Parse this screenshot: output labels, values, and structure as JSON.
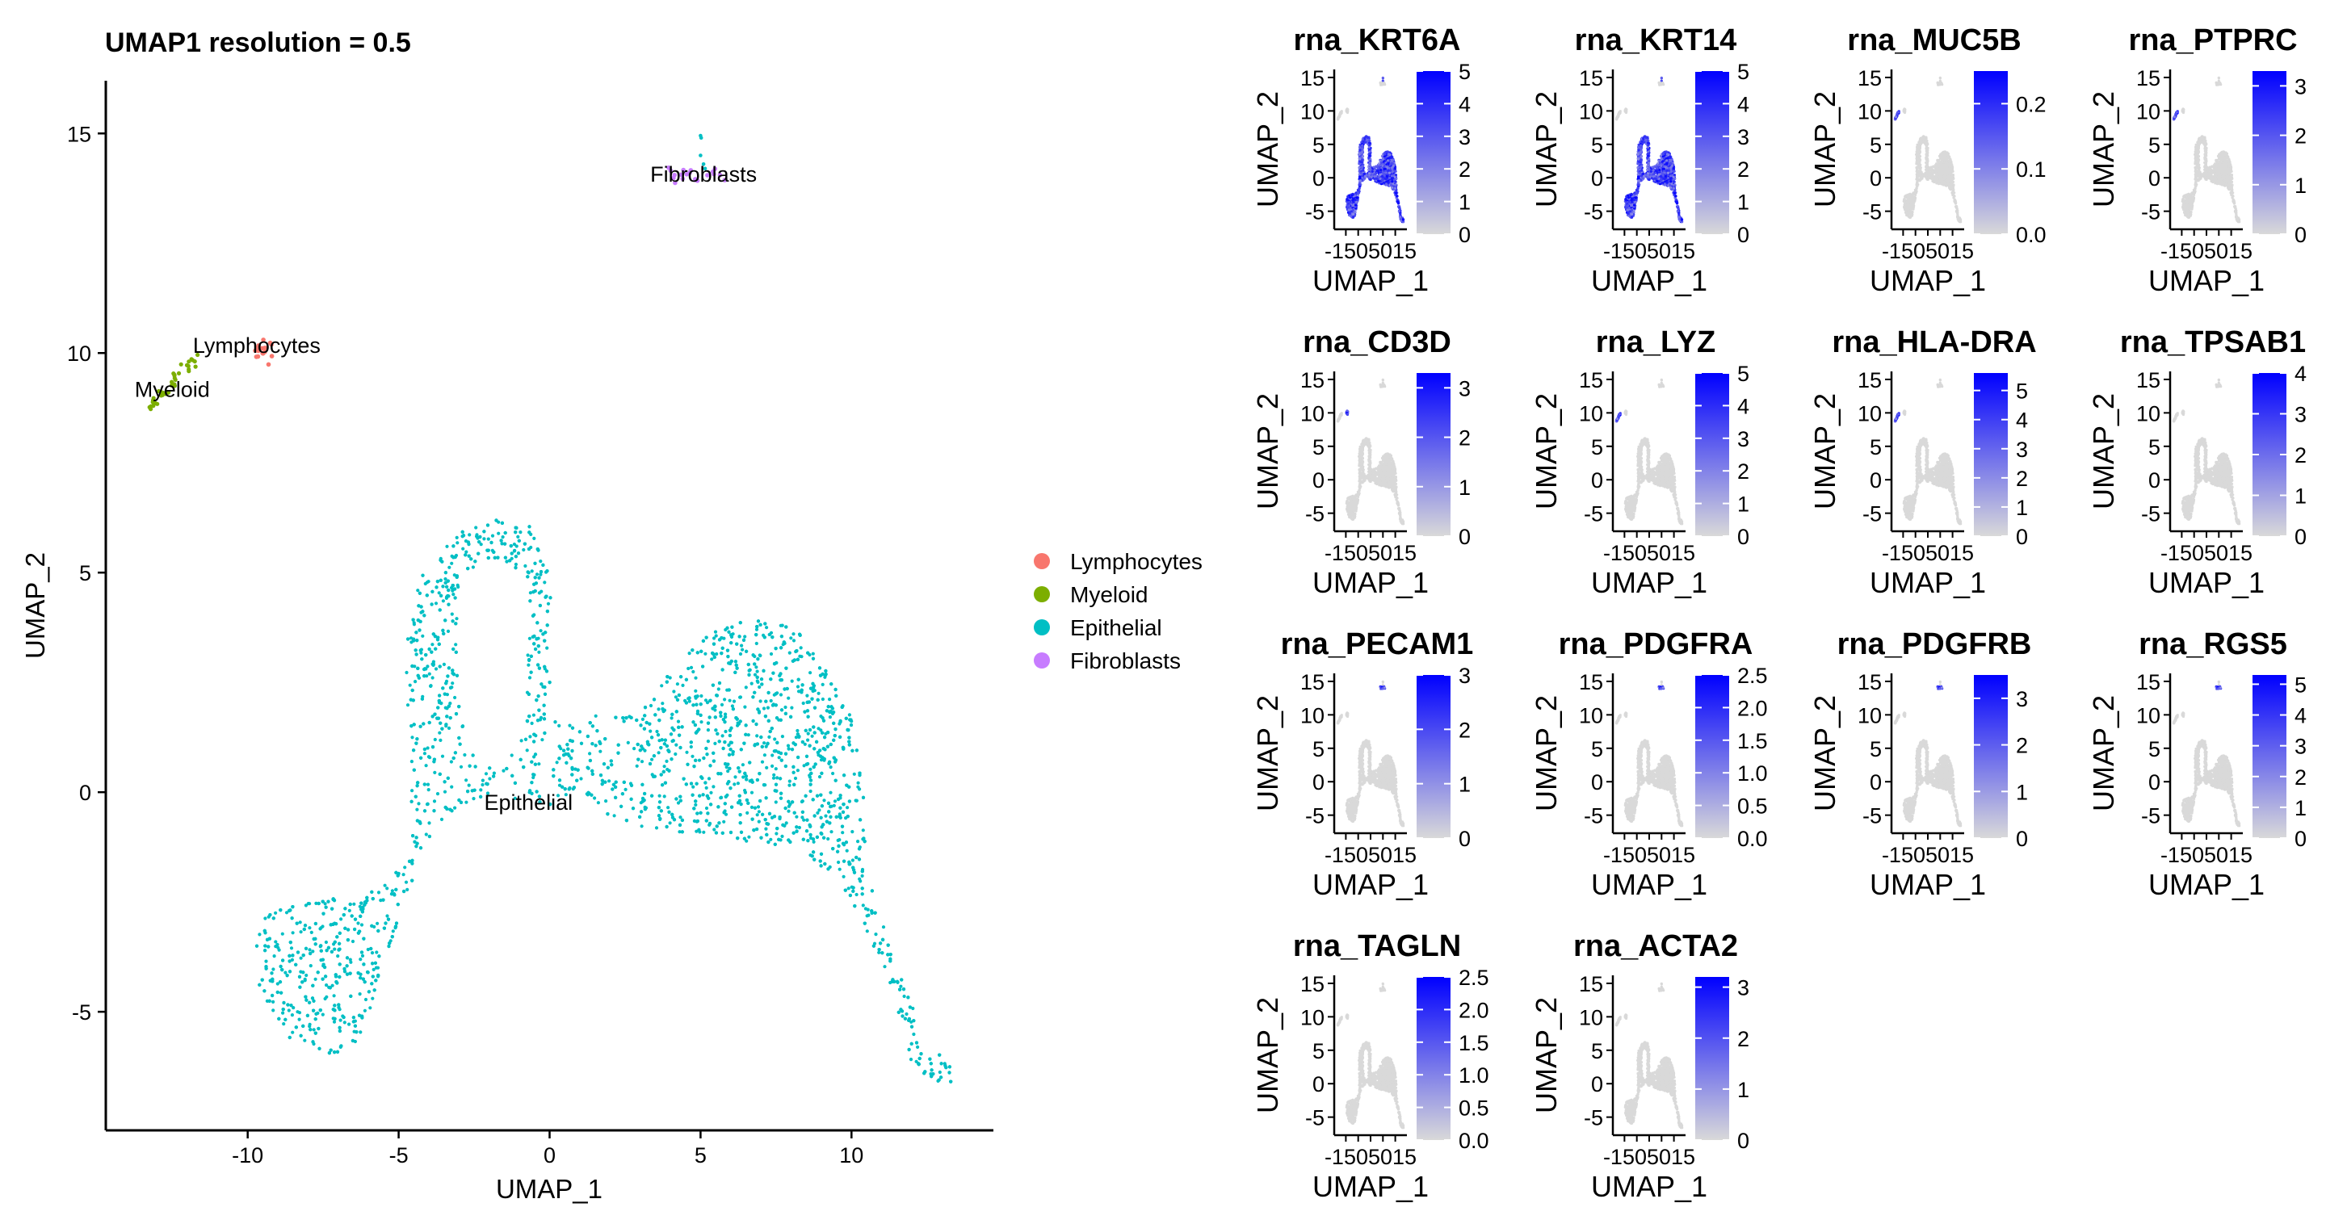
{
  "main": {
    "title": "UMAP1 resolution = 0.5",
    "xlabel": "UMAP_1",
    "ylabel": "UMAP_2",
    "xticks": [
      "-10",
      "-5",
      "0",
      "5",
      "10"
    ],
    "yticks": [
      "-5",
      "0",
      "5",
      "10",
      "15"
    ],
    "cluster_labels": [
      "Lymphocytes",
      "Myeloid",
      "Epithelial",
      "Fibroblasts"
    ]
  },
  "legend": {
    "items": [
      {
        "label": "Lymphocytes",
        "color": "#F8766D"
      },
      {
        "label": "Myeloid",
        "color": "#7CAE00"
      },
      {
        "label": "Epithelial",
        "color": "#00BFC4"
      },
      {
        "label": "Fibroblasts",
        "color": "#C77CFF"
      }
    ]
  },
  "features": {
    "xlabel": "UMAP_1",
    "ylabel": "UMAP_2",
    "xtick_text": "-1505015",
    "yticks": [
      "15",
      "10",
      "5",
      "0",
      "-5"
    ],
    "panels": [
      {
        "title": "rna_KRT6A",
        "scale": [
          "5",
          "4",
          "3",
          "2",
          "1",
          "0"
        ]
      },
      {
        "title": "rna_KRT14",
        "scale": [
          "5",
          "4",
          "3",
          "2",
          "1",
          "0"
        ]
      },
      {
        "title": "rna_MUC5B",
        "scale": [
          "0.2",
          "0.1",
          "0.0"
        ]
      },
      {
        "title": "rna_PTPRC",
        "scale": [
          "3",
          "2",
          "1",
          "0"
        ]
      },
      {
        "title": "rna_CD3D",
        "scale": [
          "3",
          "2",
          "1",
          "0"
        ]
      },
      {
        "title": "rna_LYZ",
        "scale": [
          "5",
          "4",
          "3",
          "2",
          "1",
          "0"
        ]
      },
      {
        "title": "rna_HLA-DRA",
        "scale": [
          "5",
          "4",
          "3",
          "2",
          "1",
          "0"
        ]
      },
      {
        "title": "rna_TPSAB1",
        "scale": [
          "4",
          "3",
          "2",
          "1",
          "0"
        ]
      },
      {
        "title": "rna_PECAM1",
        "scale": [
          "3",
          "2",
          "1",
          "0"
        ]
      },
      {
        "title": "rna_PDGFRA",
        "scale": [
          "2.5",
          "2.0",
          "1.5",
          "1.0",
          "0.5",
          "0.0"
        ]
      },
      {
        "title": "rna_PDGFRB",
        "scale": [
          "3",
          "2",
          "1",
          "0"
        ]
      },
      {
        "title": "rna_RGS5",
        "scale": [
          "5",
          "4",
          "3",
          "2",
          "1",
          "0"
        ]
      },
      {
        "title": "rna_TAGLN",
        "scale": [
          "2.5",
          "2.0",
          "1.5",
          "1.0",
          "0.5",
          "0.0"
        ]
      },
      {
        "title": "rna_ACTA2",
        "scale": [
          "3",
          "2",
          "1",
          "0"
        ]
      }
    ]
  },
  "chart_data": [
    {
      "type": "scatter",
      "title": "UMAP1 resolution = 0.5",
      "xlabel": "UMAP_1",
      "ylabel": "UMAP_2",
      "xlim": [
        -14.7,
        14.7
      ],
      "ylim": [
        -7.7,
        16.2
      ],
      "grid": false,
      "legend_position": "right",
      "series": [
        {
          "name": "Lymphocytes",
          "color": "#F8766D",
          "x": [
            -9.7,
            -9.5,
            -9.4,
            -9.3,
            -9.2
          ],
          "y": [
            10.2,
            10.1,
            10.0,
            10.05,
            9.95
          ]
        },
        {
          "name": "Myeloid",
          "color": "#7CAE00",
          "x": [
            -13.3,
            -13.0,
            -12.7,
            -12.4,
            -12.1,
            -11.8
          ],
          "y": [
            8.7,
            8.9,
            9.1,
            9.3,
            9.55,
            9.8
          ]
        },
        {
          "name": "Epithelial",
          "color": "#00BFC4",
          "x": [
            -7.5,
            -8.5,
            -6.0,
            -4.0,
            -2.0,
            -0.5,
            1.5,
            4.0,
            6.5,
            9.0,
            10.5,
            12.0,
            13.0,
            -3.0,
            -1.5,
            5.0
          ],
          "y": [
            -4.0,
            -3.0,
            -5.5,
            -2.5,
            0.0,
            5.5,
            1.5,
            2.5,
            3.8,
            1.5,
            -2.5,
            -5.5,
            -6.4,
            3.5,
            4.5,
            14.9
          ]
        },
        {
          "name": "Fibroblasts",
          "color": "#C77CFF",
          "x": [
            4.0,
            4.7,
            5.3,
            5.9
          ],
          "y": [
            14.1,
            14.0,
            14.05,
            14.1
          ]
        }
      ],
      "annotations": [
        "Lymphocytes",
        "Myeloid",
        "Epithelial",
        "Fibroblasts"
      ]
    },
    {
      "type": "scatter",
      "panels": [
        "rna_KRT6A",
        "rna_KRT14",
        "rna_MUC5B",
        "rna_PTPRC",
        "rna_CD3D",
        "rna_LYZ",
        "rna_HLA-DRA",
        "rna_TPSAB1",
        "rna_PECAM1",
        "rna_PDGFRA",
        "rna_PDGFRB",
        "rna_RGS5",
        "rna_TAGLN",
        "rna_ACTA2"
      ],
      "xlabel": "UMAP_1",
      "ylabel": "UMAP_2",
      "ylim": [
        -7.7,
        16.2
      ],
      "color_low": "#D9D9D9",
      "color_high": "#0000FF",
      "legend_max": [
        5,
        5,
        0.25,
        3.3,
        3.3,
        5,
        5.6,
        4,
        3,
        2.5,
        3.5,
        5.3,
        2.5,
        3.2
      ],
      "expressed_in": [
        "Epithelial",
        "Epithelial",
        "Myeloid",
        "Myeloid",
        "Lymphocytes",
        "Myeloid",
        "Myeloid",
        "none",
        "Fibroblasts",
        "Fibroblasts",
        "Fibroblasts",
        "Fibroblasts",
        "none",
        "none"
      ]
    }
  ]
}
